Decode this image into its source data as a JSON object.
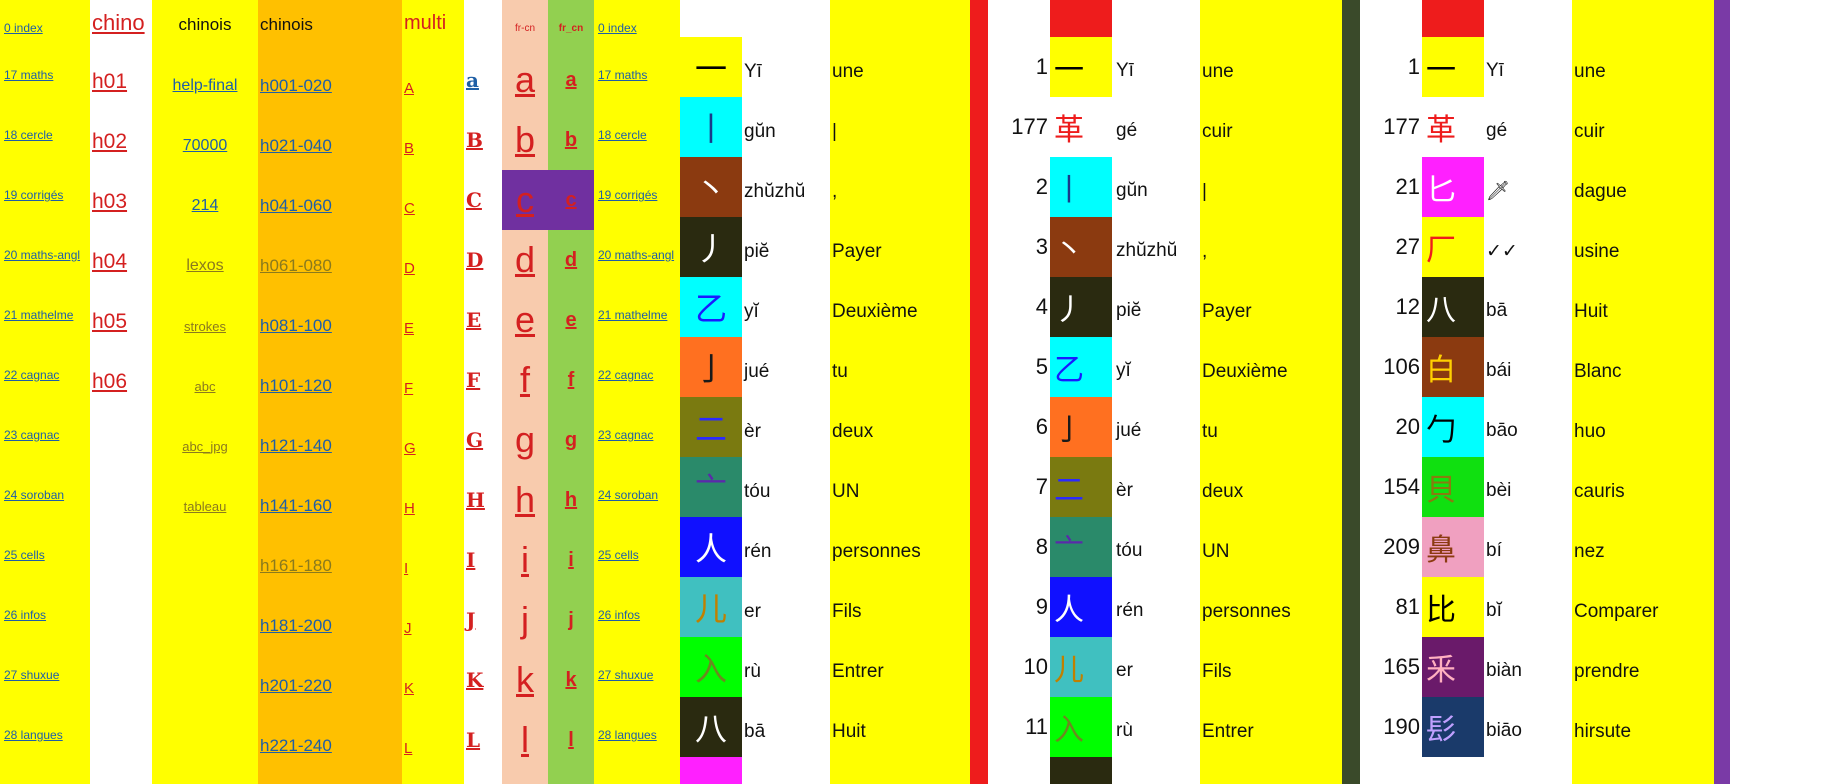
{
  "colors": {
    "yellow": "#ffff00",
    "orange": "#ffc000",
    "peach": "#f8cbad",
    "green": "#92d050",
    "purple": "#7030a0",
    "red": "#ee1c1c",
    "darkgreen": "#3a4a2a",
    "violet": "#7a3aa6"
  },
  "sheets": [
    {
      "label": "0 index",
      "top": true
    },
    {
      "label": "17 maths"
    },
    {
      "label": "18 cercle"
    },
    {
      "label": "19 corrigés"
    },
    {
      "label": "20 maths-angl"
    },
    {
      "label": "21 mathelme"
    },
    {
      "label": "22 cagnac"
    },
    {
      "label": "23 cagnac"
    },
    {
      "label": "24 soroban"
    },
    {
      "label": "25 cells"
    },
    {
      "label": "26 infos"
    },
    {
      "label": "27 shuxue"
    },
    {
      "label": "28 langues"
    }
  ],
  "chino": {
    "header": "chino",
    "items": [
      "h01",
      "h02",
      "h03",
      "h04",
      "h05",
      "h06"
    ]
  },
  "chinois1": {
    "header": "chinois",
    "items": [
      "help-final",
      "70000",
      "214",
      "lexos",
      "strokes",
      "abc",
      "abc_jpg",
      "tableau"
    ]
  },
  "chinois2": {
    "header": "chinois",
    "items": [
      "h001-020",
      "h021-040",
      "h041-060",
      "h061-080",
      "h081-100",
      "h101-120",
      "h121-140",
      "h141-160",
      "h161-180",
      "h181-200",
      "h201-220",
      "h221-240"
    ]
  },
  "multi": {
    "header": "multi",
    "items": [
      "A",
      "B",
      "C",
      "D",
      "E",
      "F",
      "G",
      "H",
      "I",
      "J",
      "K",
      "L"
    ]
  },
  "fancy_letters": [
    "a",
    "B",
    "C",
    "D",
    "E",
    "F",
    "G",
    "H",
    "I",
    "J",
    "K",
    "L"
  ],
  "frcn": {
    "header1": "fr-cn",
    "header2": "fr_cn",
    "big": [
      "a",
      "b",
      "c",
      "d",
      "e",
      "f",
      "g",
      "h",
      "i",
      "j",
      "k",
      "l"
    ],
    "bold": [
      "a",
      "b",
      "c",
      "d",
      "e",
      "f",
      "g",
      "h",
      "i",
      "j",
      "k",
      "l"
    ]
  },
  "radicals": [
    {
      "glyph": "一",
      "bg": "#ffff00",
      "fg": "#000000",
      "pinyin": "Yī",
      "fr": "une"
    },
    {
      "glyph": "丨",
      "bg": "#00ffff",
      "fg": "#1a3a8a",
      "pinyin": "gŭn",
      "fr": "|"
    },
    {
      "glyph": "丶",
      "bg": "#8b3a10",
      "fg": "#ffffff",
      "pinyin": "zhŭzhŭ",
      "fr": ","
    },
    {
      "glyph": "丿",
      "bg": "#2a2a10",
      "fg": "#ffffff",
      "pinyin": "piĕ",
      "fr": "Payer"
    },
    {
      "glyph": "乙",
      "bg": "#00ffff",
      "fg": "#1a1aff",
      "pinyin": "yĭ",
      "fr": "Deuxième"
    },
    {
      "glyph": "亅",
      "bg": "#ff7020",
      "fg": "#1a1a1a",
      "pinyin": "jué",
      "fr": "tu"
    },
    {
      "glyph": "二",
      "bg": "#7a7a10",
      "fg": "#2a2aff",
      "pinyin": "èr",
      "fr": "deux"
    },
    {
      "glyph": "亠",
      "bg": "#2a8a6a",
      "fg": "#5a2aaa",
      "pinyin": "tóu",
      "fr": "UN"
    },
    {
      "glyph": "人",
      "bg": "#1010ff",
      "fg": "#ffffff",
      "pinyin": "rén",
      "fr": "personnes"
    },
    {
      "glyph": "儿",
      "bg": "#40c0c0",
      "fg": "#c08000",
      "pinyin": "er",
      "fr": "Fils"
    },
    {
      "glyph": "入",
      "bg": "#00ff00",
      "fg": "#6a8a20",
      "pinyin": "rù",
      "fr": "Entrer"
    },
    {
      "glyph": "八",
      "bg": "#2a2a10",
      "fg": "#ffffff",
      "pinyin": "bā",
      "fr": "Huit"
    }
  ],
  "numbered": [
    {
      "num": "1",
      "glyph": "一",
      "bg": "#ffff00",
      "fg": "#000000",
      "pinyin": "Yī",
      "fr": "une"
    },
    {
      "num": "177",
      "glyph": "革",
      "bg": "#ffffff",
      "fg": "#ee1c1c",
      "pinyin": "gé",
      "fr": "cuir"
    },
    {
      "num": "2",
      "glyph": "丨",
      "bg": "#00ffff",
      "fg": "#1a3a8a",
      "pinyin": "gŭn",
      "fr": "|"
    },
    {
      "num": "3",
      "glyph": "丶",
      "bg": "#8b3a10",
      "fg": "#ffffff",
      "pinyin": "zhŭzhŭ",
      "fr": ","
    },
    {
      "num": "4",
      "glyph": "丿",
      "bg": "#2a2a10",
      "fg": "#ffffff",
      "pinyin": "piĕ",
      "fr": "Payer"
    },
    {
      "num": "5",
      "glyph": "乙",
      "bg": "#00ffff",
      "fg": "#1a1aff",
      "pinyin": "yĭ",
      "fr": "Deuxième"
    },
    {
      "num": "6",
      "glyph": "亅",
      "bg": "#ff7020",
      "fg": "#1a1a1a",
      "pinyin": "jué",
      "fr": "tu"
    },
    {
      "num": "7",
      "glyph": "二",
      "bg": "#7a7a10",
      "fg": "#2a2aff",
      "pinyin": "èr",
      "fr": "deux"
    },
    {
      "num": "8",
      "glyph": "亠",
      "bg": "#2a8a6a",
      "fg": "#5a2aaa",
      "pinyin": "tóu",
      "fr": "UN"
    },
    {
      "num": "9",
      "glyph": "人",
      "bg": "#1010ff",
      "fg": "#ffffff",
      "pinyin": "rén",
      "fr": "personnes"
    },
    {
      "num": "10",
      "glyph": "儿",
      "bg": "#40c0c0",
      "fg": "#c08000",
      "pinyin": "er",
      "fr": "Fils"
    },
    {
      "num": "11",
      "glyph": "入",
      "bg": "#00ff00",
      "fg": "#6a8a20",
      "pinyin": "rù",
      "fr": "Entrer"
    }
  ],
  "sorted": [
    {
      "num": "1",
      "glyph": "一",
      "bg": "#ffff00",
      "fg": "#000000",
      "pinyin": "Yī",
      "fr": "une"
    },
    {
      "num": "177",
      "glyph": "革",
      "bg": "#ffffff",
      "fg": "#ee1c1c",
      "pinyin": "gé",
      "fr": "cuir"
    },
    {
      "num": "21",
      "glyph": "匕",
      "bg": "#ff20ff",
      "fg": "#ffffff",
      "pinyin": "🗡",
      "fr": "dague"
    },
    {
      "num": "27",
      "glyph": "厂",
      "bg": "#ffff00",
      "fg": "#ee1c1c",
      "pinyin": "✓✓",
      "fr": "usine"
    },
    {
      "num": "12",
      "glyph": "八",
      "bg": "#2a2a10",
      "fg": "#ffffff",
      "pinyin": "bā",
      "fr": "Huit"
    },
    {
      "num": "106",
      "glyph": "白",
      "bg": "#8b3a10",
      "fg": "#ffd000",
      "pinyin": "bái",
      "fr": "Blanc"
    },
    {
      "num": "20",
      "glyph": "勹",
      "bg": "#00ffff",
      "fg": "#000000",
      "pinyin": "bāo",
      "fr": "huo"
    },
    {
      "num": "154",
      "glyph": "貝",
      "bg": "#10e010",
      "fg": "#8a7a10",
      "pinyin": "bèi",
      "fr": "cauris"
    },
    {
      "num": "209",
      "glyph": "鼻",
      "bg": "#f0a0c0",
      "fg": "#8b3a10",
      "pinyin": "bí",
      "fr": "nez"
    },
    {
      "num": "81",
      "glyph": "比",
      "bg": "#ffff00",
      "fg": "#000000",
      "pinyin": "bĭ",
      "fr": "Comparer"
    },
    {
      "num": "165",
      "glyph": "釆",
      "bg": "#6a1a6a",
      "fg": "#ffb0c0",
      "pinyin": "biàn",
      "fr": "prendre"
    },
    {
      "num": "190",
      "glyph": "髟",
      "bg": "#1a3a6a",
      "fg": "#c0a0ff",
      "pinyin": "biāo",
      "fr": "hirsute"
    }
  ]
}
